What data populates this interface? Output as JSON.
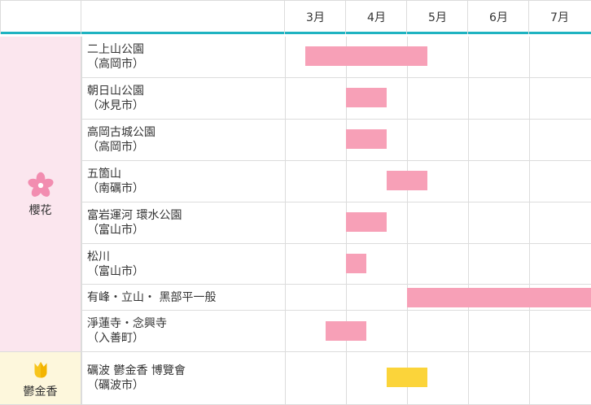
{
  "header": {
    "months": [
      "3月",
      "4月",
      "5月",
      "6月",
      "7月"
    ]
  },
  "colors": {
    "accent_line": "#1fb3c1",
    "sakura_bar": "#f7a0b7",
    "tulip_bar": "#fbd43a",
    "sakura_bg": "#fbe6ee",
    "tulip_bg": "#fdf7dc"
  },
  "categories": [
    {
      "label": "櫻花",
      "icon": "sakura-flower-icon"
    },
    {
      "label": "鬱金香",
      "icon": "tulip-icon"
    }
  ],
  "rows": [
    {
      "name": "二上山公園",
      "sub": "（高岡市）",
      "category": "櫻花"
    },
    {
      "name": "朝日山公園",
      "sub": "（冰見市）",
      "category": "櫻花"
    },
    {
      "name": "高岡古城公園",
      "sub": "（高岡市）",
      "category": "櫻花"
    },
    {
      "name": "五箇山",
      "sub": "（南礪市）",
      "category": "櫻花"
    },
    {
      "name": "富岩運河 環水公園",
      "sub": "（富山市）",
      "category": "櫻花"
    },
    {
      "name": "松川",
      "sub": "（富山市）",
      "category": "櫻花"
    },
    {
      "name": "有峰・立山・ 黑部平一般",
      "sub": "",
      "category": "櫻花"
    },
    {
      "name": "淨蓮寺・念興寺",
      "sub": "（入善町）",
      "category": "櫻花"
    },
    {
      "name": "礪波 鬱金香 博覽會",
      "sub": "（礪波市）",
      "category": "鬱金香"
    }
  ]
}
